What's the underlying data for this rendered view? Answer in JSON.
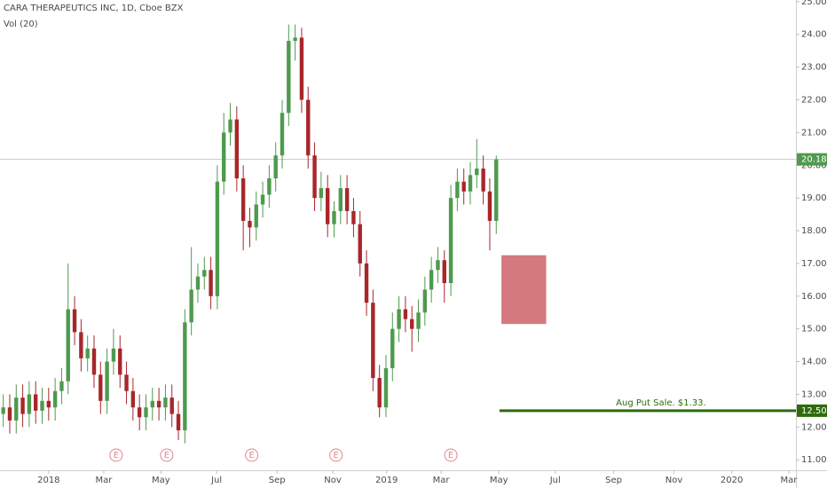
{
  "chart_data": {
    "type": "candlestick",
    "title": "CARA THERAPEUTICS INC, 1D, Cboe BZX",
    "subtitle": "Vol (20)",
    "up_color": "#4e9a4e",
    "down_color": "#a8262b",
    "grid": false,
    "x": [
      -7,
      -6,
      -5,
      -4,
      -3,
      -2,
      -1,
      0,
      1,
      2,
      3,
      4,
      5,
      6,
      7,
      8,
      9,
      10,
      11,
      12,
      13,
      14,
      15,
      16,
      17,
      18,
      19,
      20,
      21,
      22,
      23,
      24,
      25,
      26,
      27,
      28,
      29,
      30,
      31,
      32,
      33,
      34,
      35,
      36,
      37,
      38,
      39,
      40,
      41,
      42,
      43,
      44,
      45,
      46,
      47,
      48,
      49,
      50,
      51,
      52,
      53,
      54,
      55,
      56,
      57,
      58,
      59,
      60,
      61,
      62,
      63,
      64,
      65,
      66,
      67,
      68,
      69
    ],
    "open": [
      12.4,
      12.6,
      12.2,
      12.9,
      12.4,
      13.0,
      12.5,
      12.8,
      12.6,
      13.1,
      13.4,
      15.6,
      14.9,
      14.1,
      14.4,
      13.6,
      12.8,
      14.0,
      14.4,
      13.6,
      13.1,
      12.6,
      12.3,
      12.6,
      12.8,
      12.6,
      12.9,
      12.4,
      11.9,
      15.2,
      16.2,
      16.6,
      16.8,
      16.0,
      19.5,
      21.0,
      21.4,
      19.6,
      18.3,
      18.1,
      18.8,
      19.1,
      19.6,
      20.3,
      21.6,
      23.8,
      23.9,
      22.0,
      20.3,
      19.0,
      19.3,
      18.2,
      18.6,
      19.3,
      18.6,
      18.2,
      17.0,
      15.8,
      13.5,
      12.6,
      13.8,
      15.0,
      15.6,
      15.3,
      15.0,
      15.5,
      16.2,
      16.8,
      17.1,
      16.4,
      19.0,
      19.5,
      19.2,
      19.7,
      19.9,
      19.2,
      18.3
    ],
    "high": [
      13.0,
      13.0,
      13.3,
      13.3,
      13.4,
      13.4,
      13.2,
      13.2,
      13.5,
      13.8,
      17.0,
      16.0,
      15.3,
      14.8,
      14.8,
      14.0,
      14.4,
      15.0,
      14.8,
      14.0,
      13.5,
      13.0,
      13.0,
      13.2,
      13.2,
      13.3,
      13.3,
      12.8,
      15.6,
      17.5,
      17.0,
      17.2,
      17.2,
      20.0,
      21.6,
      21.9,
      21.8,
      20.0,
      18.7,
      19.2,
      19.5,
      20.0,
      20.7,
      22.0,
      24.3,
      24.3,
      24.2,
      22.4,
      20.7,
      19.8,
      19.7,
      18.9,
      19.7,
      19.7,
      19.0,
      18.6,
      17.4,
      16.2,
      13.9,
      14.2,
      15.5,
      16.0,
      16.0,
      15.7,
      15.9,
      16.6,
      17.2,
      17.5,
      17.4,
      19.4,
      19.9,
      19.9,
      20.1,
      20.8,
      20.3,
      19.6,
      20.3
    ],
    "low": [
      12.0,
      11.8,
      11.8,
      12.0,
      12.0,
      12.1,
      12.1,
      12.2,
      12.2,
      12.7,
      13.0,
      14.5,
      13.7,
      13.7,
      13.2,
      12.4,
      12.4,
      13.6,
      13.2,
      12.7,
      12.2,
      11.9,
      11.9,
      12.2,
      12.2,
      12.2,
      12.0,
      11.6,
      11.5,
      14.8,
      15.8,
      16.2,
      15.6,
      15.6,
      19.1,
      20.6,
      19.2,
      17.4,
      17.5,
      17.7,
      18.4,
      18.7,
      19.2,
      19.9,
      21.2,
      23.2,
      21.6,
      19.9,
      18.6,
      18.6,
      17.8,
      17.8,
      18.2,
      18.2,
      17.8,
      16.6,
      15.4,
      13.1,
      12.3,
      12.3,
      13.4,
      14.6,
      14.9,
      14.3,
      14.6,
      15.1,
      15.8,
      16.4,
      15.8,
      16.0,
      18.6,
      18.8,
      18.8,
      19.3,
      18.8,
      17.4,
      17.9
    ],
    "close": [
      12.6,
      12.2,
      12.9,
      12.4,
      13.0,
      12.5,
      12.8,
      12.6,
      13.1,
      13.4,
      15.6,
      14.9,
      14.1,
      14.4,
      13.6,
      12.8,
      14.0,
      14.4,
      13.6,
      13.1,
      12.6,
      12.3,
      12.6,
      12.8,
      12.6,
      12.9,
      12.4,
      11.9,
      15.2,
      16.2,
      16.6,
      16.8,
      16.0,
      19.5,
      21.0,
      21.4,
      19.6,
      18.3,
      18.1,
      18.8,
      19.1,
      19.6,
      20.3,
      21.6,
      23.8,
      23.9,
      22.0,
      20.3,
      19.0,
      19.3,
      18.2,
      18.6,
      19.3,
      18.6,
      18.2,
      17.0,
      15.8,
      13.5,
      12.6,
      13.8,
      15.0,
      15.6,
      15.3,
      15.0,
      15.5,
      16.2,
      16.8,
      17.1,
      16.4,
      19.0,
      19.5,
      19.2,
      19.7,
      19.9,
      19.2,
      18.3,
      20.18
    ],
    "xlim": [
      -7.5,
      115.2
    ],
    "xticks": [
      {
        "value": 0,
        "label": "2018"
      },
      {
        "value": 8.5,
        "label": "Mar"
      },
      {
        "value": 17.3,
        "label": "May"
      },
      {
        "value": 25.9,
        "label": "Jul"
      },
      {
        "value": 35.2,
        "label": "Sep"
      },
      {
        "value": 43.8,
        "label": "Nov"
      },
      {
        "value": 52.1,
        "label": "2019"
      },
      {
        "value": 60.5,
        "label": "Mar"
      },
      {
        "value": 69.4,
        "label": "May"
      },
      {
        "value": 78.1,
        "label": "Jul"
      },
      {
        "value": 87.1,
        "label": "Sep"
      },
      {
        "value": 96.4,
        "label": "Nov"
      },
      {
        "value": 105.3,
        "label": "2020"
      },
      {
        "value": 114.1,
        "label": "Mar"
      }
    ],
    "ylim": [
      10.68,
      25.05
    ],
    "yticks": [
      {
        "value": 11,
        "label": "11.00"
      },
      {
        "value": 12,
        "label": "12.00"
      },
      {
        "value": 13,
        "label": "13.00"
      },
      {
        "value": 14,
        "label": "14.00"
      },
      {
        "value": 15,
        "label": "15.00"
      },
      {
        "value": 16,
        "label": "16.00"
      },
      {
        "value": 17,
        "label": "17.00"
      },
      {
        "value": 18,
        "label": "18.00"
      },
      {
        "value": 19,
        "label": "19.00"
      },
      {
        "value": 20,
        "label": "20.00"
      },
      {
        "value": 21,
        "label": "21.00"
      },
      {
        "value": 22,
        "label": "22.00"
      },
      {
        "value": 23,
        "label": "23.00"
      },
      {
        "value": 24,
        "label": "24.00"
      },
      {
        "value": 25,
        "label": "25.00"
      }
    ],
    "last_price": {
      "value": 20.18,
      "label": "20.18",
      "color": "#4e9a4e"
    },
    "put_line": {
      "value": 12.5,
      "label": "12.50",
      "text": "Aug Put Sale. $1.33.",
      "x_start": 69.5,
      "color": "#2e6b0c"
    },
    "zone": {
      "x": [
        69.8,
        76.7
      ],
      "y": [
        15.15,
        17.25
      ],
      "color": "#c9575c"
    },
    "earnings": {
      "x": [
        10.4,
        18.2,
        31.3,
        44.3,
        62.0
      ],
      "label": "E",
      "color": "#e0868d"
    }
  }
}
